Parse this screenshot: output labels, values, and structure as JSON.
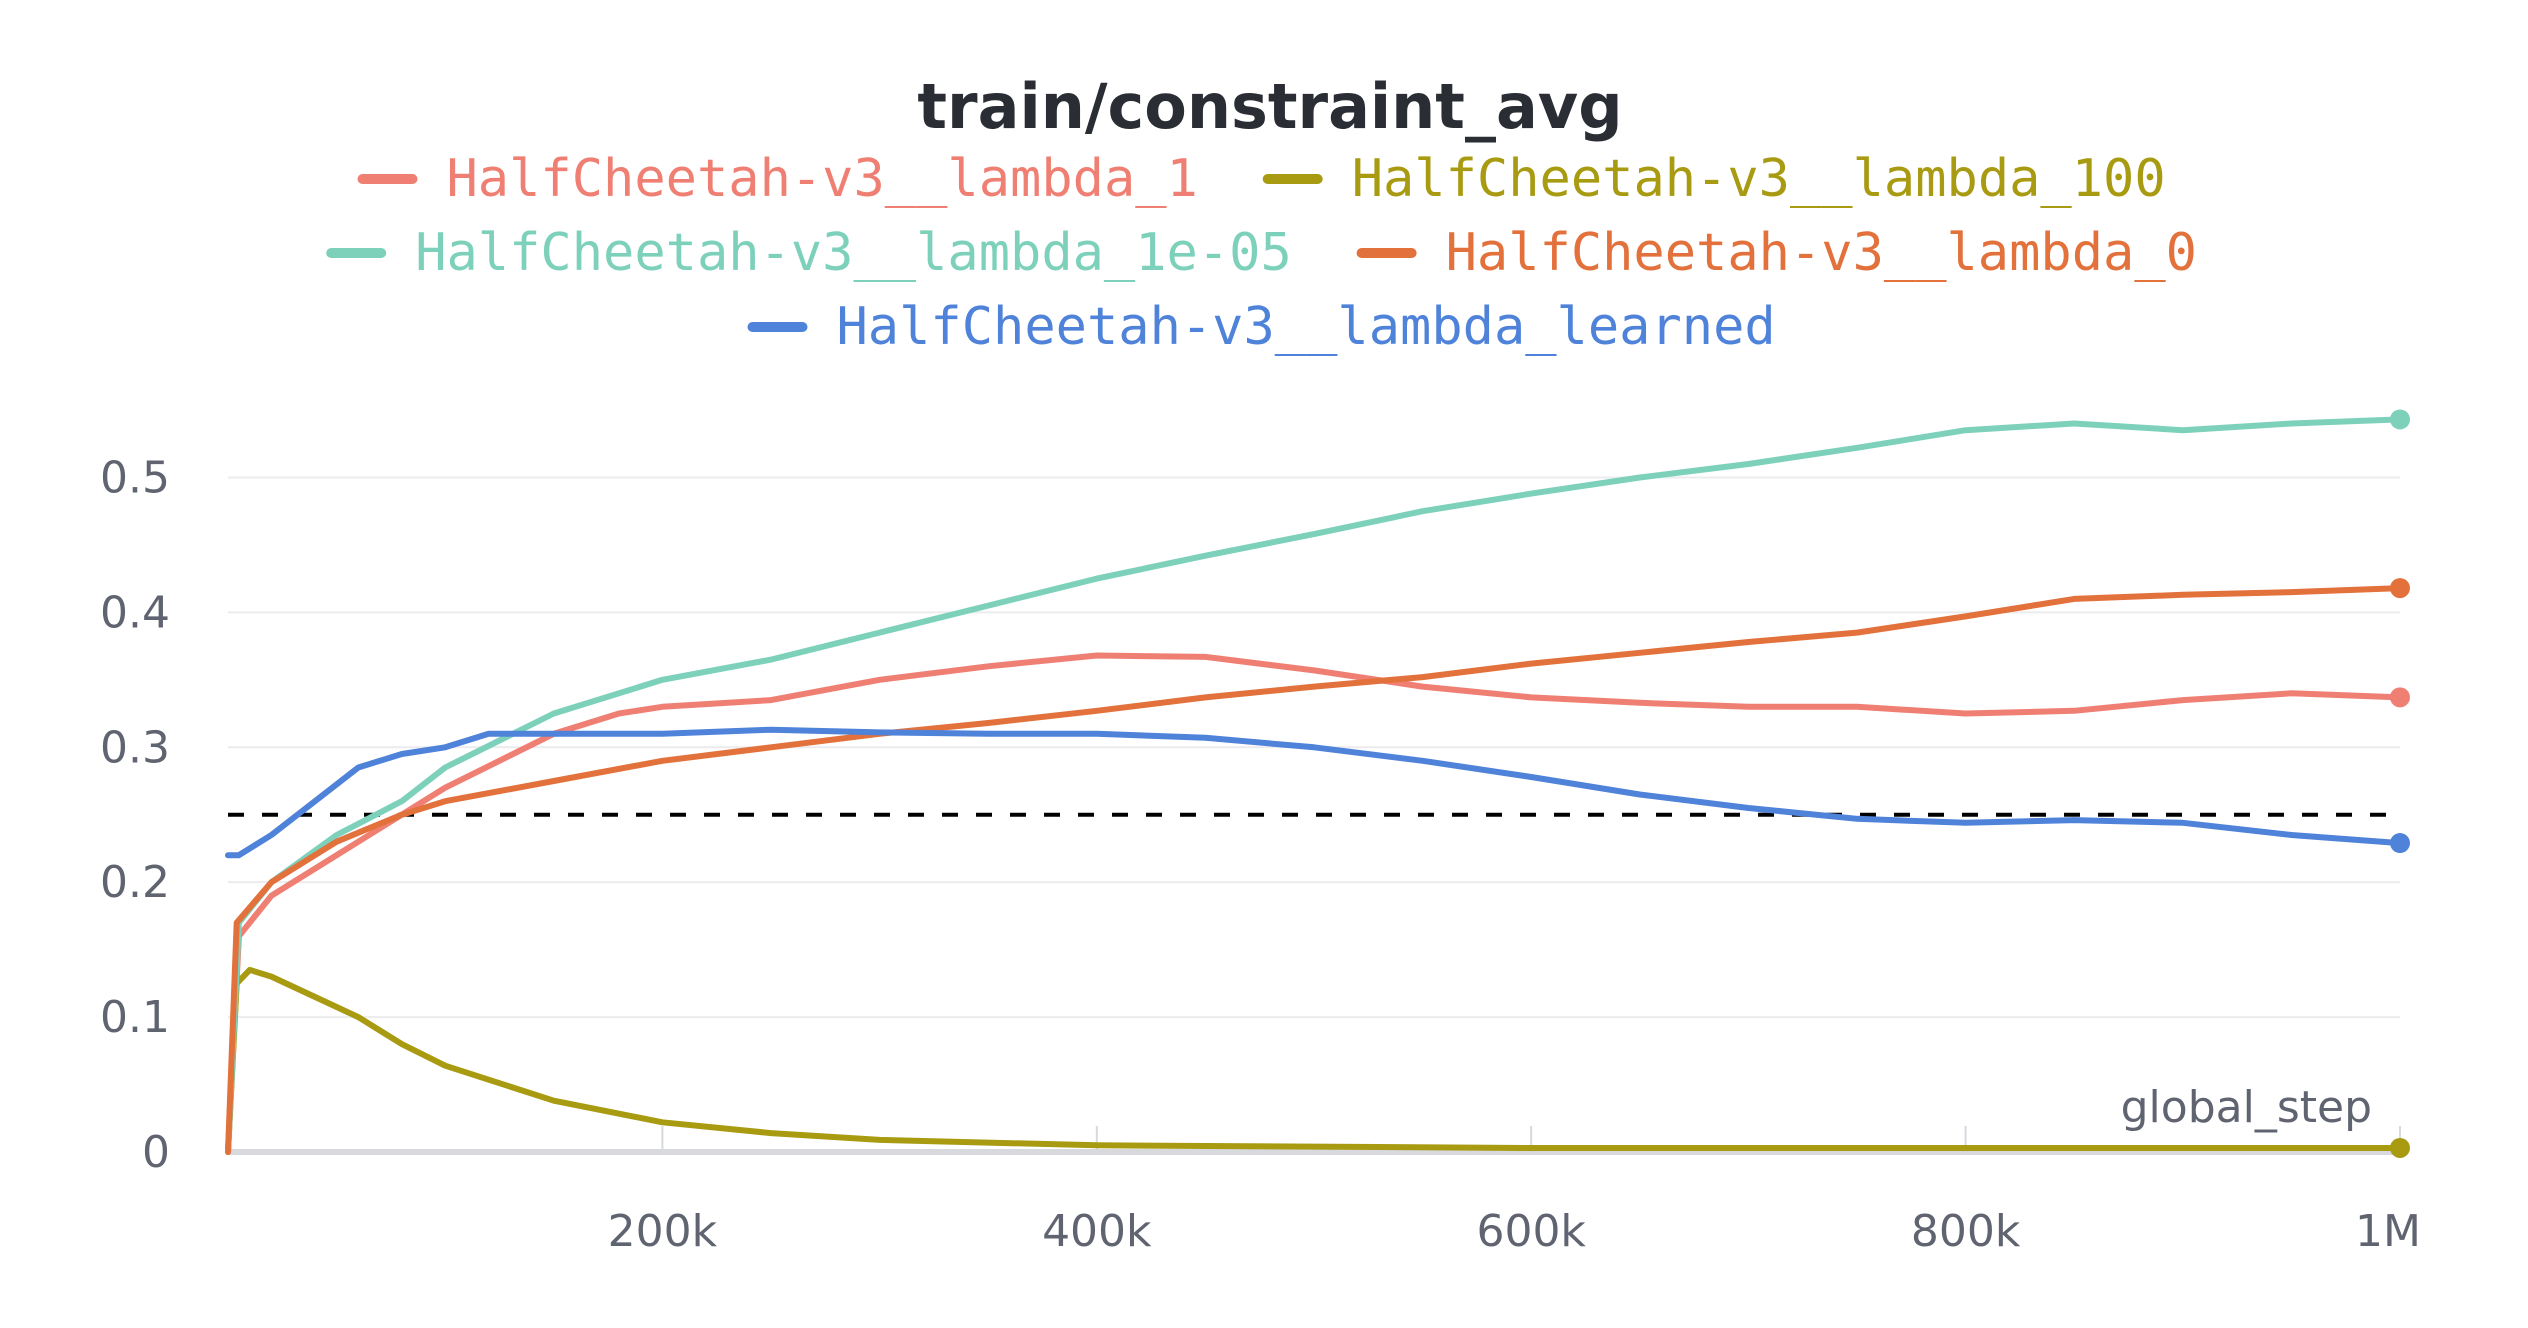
{
  "chart_data": {
    "type": "line",
    "title": "train/constraint_avg",
    "xlabel": "global_step",
    "ylabel": "",
    "xlim": [
      0,
      1000000
    ],
    "ylim": [
      0,
      0.55
    ],
    "x_ticks": [
      200000,
      400000,
      600000,
      800000,
      1000000
    ],
    "x_tick_labels": [
      "200k",
      "400k",
      "600k",
      "800k",
      "1M"
    ],
    "y_ticks": [
      0,
      0.1,
      0.2,
      0.3,
      0.4,
      0.5
    ],
    "y_tick_labels": [
      "0",
      "0.1",
      "0.2",
      "0.3",
      "0.4",
      "0.5"
    ],
    "grid": true,
    "legend_position": "top",
    "reference_line": {
      "y": 0.25,
      "style": "dashed",
      "color": "#000000"
    },
    "series": [
      {
        "name": "HalfCheetah-v3__lambda_1",
        "color": "#f07f73",
        "x": [
          0,
          5000,
          20000,
          50000,
          80000,
          100000,
          150000,
          180000,
          200000,
          250000,
          300000,
          350000,
          400000,
          450000,
          500000,
          550000,
          600000,
          650000,
          700000,
          750000,
          800000,
          850000,
          900000,
          950000,
          1000000
        ],
        "y": [
          0.0,
          0.16,
          0.19,
          0.22,
          0.25,
          0.27,
          0.31,
          0.325,
          0.33,
          0.335,
          0.35,
          0.36,
          0.368,
          0.367,
          0.357,
          0.345,
          0.337,
          0.333,
          0.33,
          0.33,
          0.325,
          0.327,
          0.335,
          0.34,
          0.337
        ]
      },
      {
        "name": "HalfCheetah-v3__lambda_100",
        "color": "#a89b12",
        "x": [
          0,
          4000,
          10000,
          20000,
          40000,
          60000,
          80000,
          100000,
          150000,
          200000,
          250000,
          300000,
          400000,
          500000,
          600000,
          800000,
          1000000
        ],
        "y": [
          0.0,
          0.125,
          0.135,
          0.13,
          0.115,
          0.1,
          0.08,
          0.064,
          0.038,
          0.022,
          0.014,
          0.009,
          0.005,
          0.004,
          0.003,
          0.003,
          0.003
        ]
      },
      {
        "name": "HalfCheetah-v3__lambda_1e-05",
        "color": "#7dd1bb",
        "x": [
          0,
          5000,
          20000,
          50000,
          80000,
          100000,
          150000,
          200000,
          250000,
          300000,
          350000,
          400000,
          450000,
          500000,
          550000,
          600000,
          650000,
          700000,
          750000,
          800000,
          850000,
          900000,
          950000,
          1000000
        ],
        "y": [
          0.0,
          0.17,
          0.2,
          0.235,
          0.26,
          0.285,
          0.325,
          0.35,
          0.365,
          0.385,
          0.405,
          0.425,
          0.442,
          0.458,
          0.475,
          0.488,
          0.5,
          0.51,
          0.522,
          0.535,
          0.54,
          0.535,
          0.54,
          0.543
        ]
      },
      {
        "name": "HalfCheetah-v3__lambda_0",
        "color": "#e2713c",
        "x": [
          0,
          4000,
          20000,
          50000,
          80000,
          100000,
          150000,
          200000,
          250000,
          300000,
          350000,
          400000,
          450000,
          500000,
          550000,
          600000,
          650000,
          700000,
          750000,
          800000,
          850000,
          900000,
          950000,
          1000000
        ],
        "y": [
          0.0,
          0.17,
          0.2,
          0.23,
          0.25,
          0.26,
          0.275,
          0.29,
          0.3,
          0.31,
          0.318,
          0.327,
          0.337,
          0.345,
          0.352,
          0.362,
          0.37,
          0.378,
          0.385,
          0.397,
          0.41,
          0.413,
          0.415,
          0.418
        ]
      },
      {
        "name": "HalfCheetah-v3__lambda_learned",
        "color": "#4f82d9",
        "x": [
          0,
          5000,
          20000,
          40000,
          60000,
          80000,
          100000,
          120000,
          150000,
          200000,
          250000,
          300000,
          350000,
          400000,
          450000,
          500000,
          550000,
          600000,
          650000,
          700000,
          750000,
          800000,
          850000,
          900000,
          950000,
          1000000
        ],
        "y": [
          0.22,
          0.22,
          0.235,
          0.26,
          0.285,
          0.295,
          0.3,
          0.31,
          0.31,
          0.31,
          0.313,
          0.311,
          0.31,
          0.31,
          0.307,
          0.3,
          0.29,
          0.278,
          0.265,
          0.255,
          0.247,
          0.244,
          0.246,
          0.244,
          0.235,
          0.229
        ]
      }
    ]
  }
}
